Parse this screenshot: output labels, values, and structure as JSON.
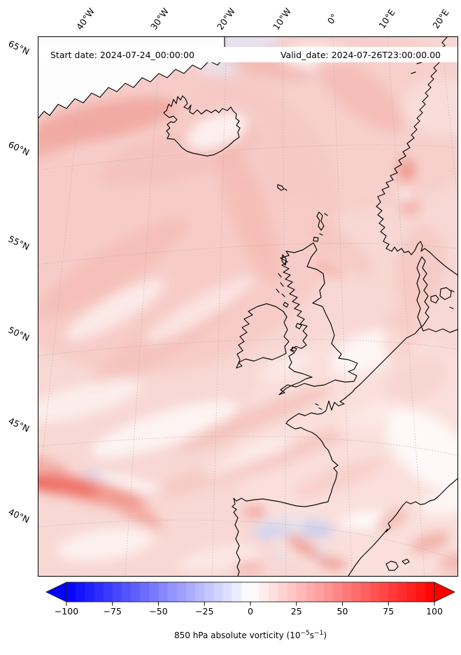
{
  "figure": {
    "background": "#ffffff"
  },
  "titles": {
    "start_date": "Start date: 2024-07-24_00:00:00",
    "valid_date": "Valid_date: 2024-07-26T23:00:00.00"
  },
  "axes": {
    "top_labels": [
      "40°W",
      "30°W",
      "20°W",
      "10°W",
      "0°",
      "10°E",
      "20°E"
    ],
    "left_labels": [
      "65°N",
      "60°N",
      "55°N",
      "50°N",
      "45°N",
      "40°N"
    ]
  },
  "colorbar": {
    "ticks": [
      "−100",
      "−75",
      "−50",
      "−25",
      "0",
      "25",
      "50",
      "75",
      "100"
    ],
    "min": -100,
    "max": 100,
    "segments": 40,
    "colormap": "bwr",
    "extend": "both",
    "left_color": "#0000ff",
    "right_color": "#ff0000",
    "label_prefix": "850 hPa absolute vorticity (10",
    "label_sup1": "−5",
    "label_mid": "s",
    "label_sup2": "−1",
    "label_suffix": ")"
  },
  "chart_data": {
    "type": "heatmap",
    "variable": "850 hPa absolute vorticity",
    "units": "10^-5 s^-1",
    "colormap": "bwr (blue-white-red)",
    "colorbar_range": [
      -100,
      100
    ],
    "colorbar_ticks": [
      -100,
      -75,
      -50,
      -25,
      0,
      25,
      50,
      75,
      100
    ],
    "start_date": "2024-07-24_00:00:00",
    "valid_date": "2024-07-26T23:00:00.00",
    "map_region": {
      "lon_gridlines": [
        "40°W",
        "30°W",
        "20°W",
        "10°W",
        "0°",
        "10°E",
        "20°E"
      ],
      "lat_gridlines": [
        "65°N",
        "60°N",
        "55°N",
        "50°N",
        "45°N",
        "40°N"
      ],
      "visible_coastlines": [
        "Greenland (SE tip)",
        "Iceland",
        "Faroe Islands",
        "Norway",
        "Sweden (Skagerrak)",
        "Denmark",
        "Great Britain",
        "Ireland",
        "France",
        "Iberian Peninsula",
        "Balearic Islands",
        "Low Countries / German Bight coast"
      ]
    },
    "field_summary": "Predominantly weak positive vorticity (pale red/pink, ~0 to +25) over the North Atlantic and Europe; a strong positive streak (~+75 to +100, bright red) at the left edge near 42°N with a thin negative (light blue) sliver beside it; small negative (light blue) patches over central Iberia; near-zero (white) areas over Greenland, south of Iceland, in Biscay and over the western Mediterranean/SE France."
  }
}
